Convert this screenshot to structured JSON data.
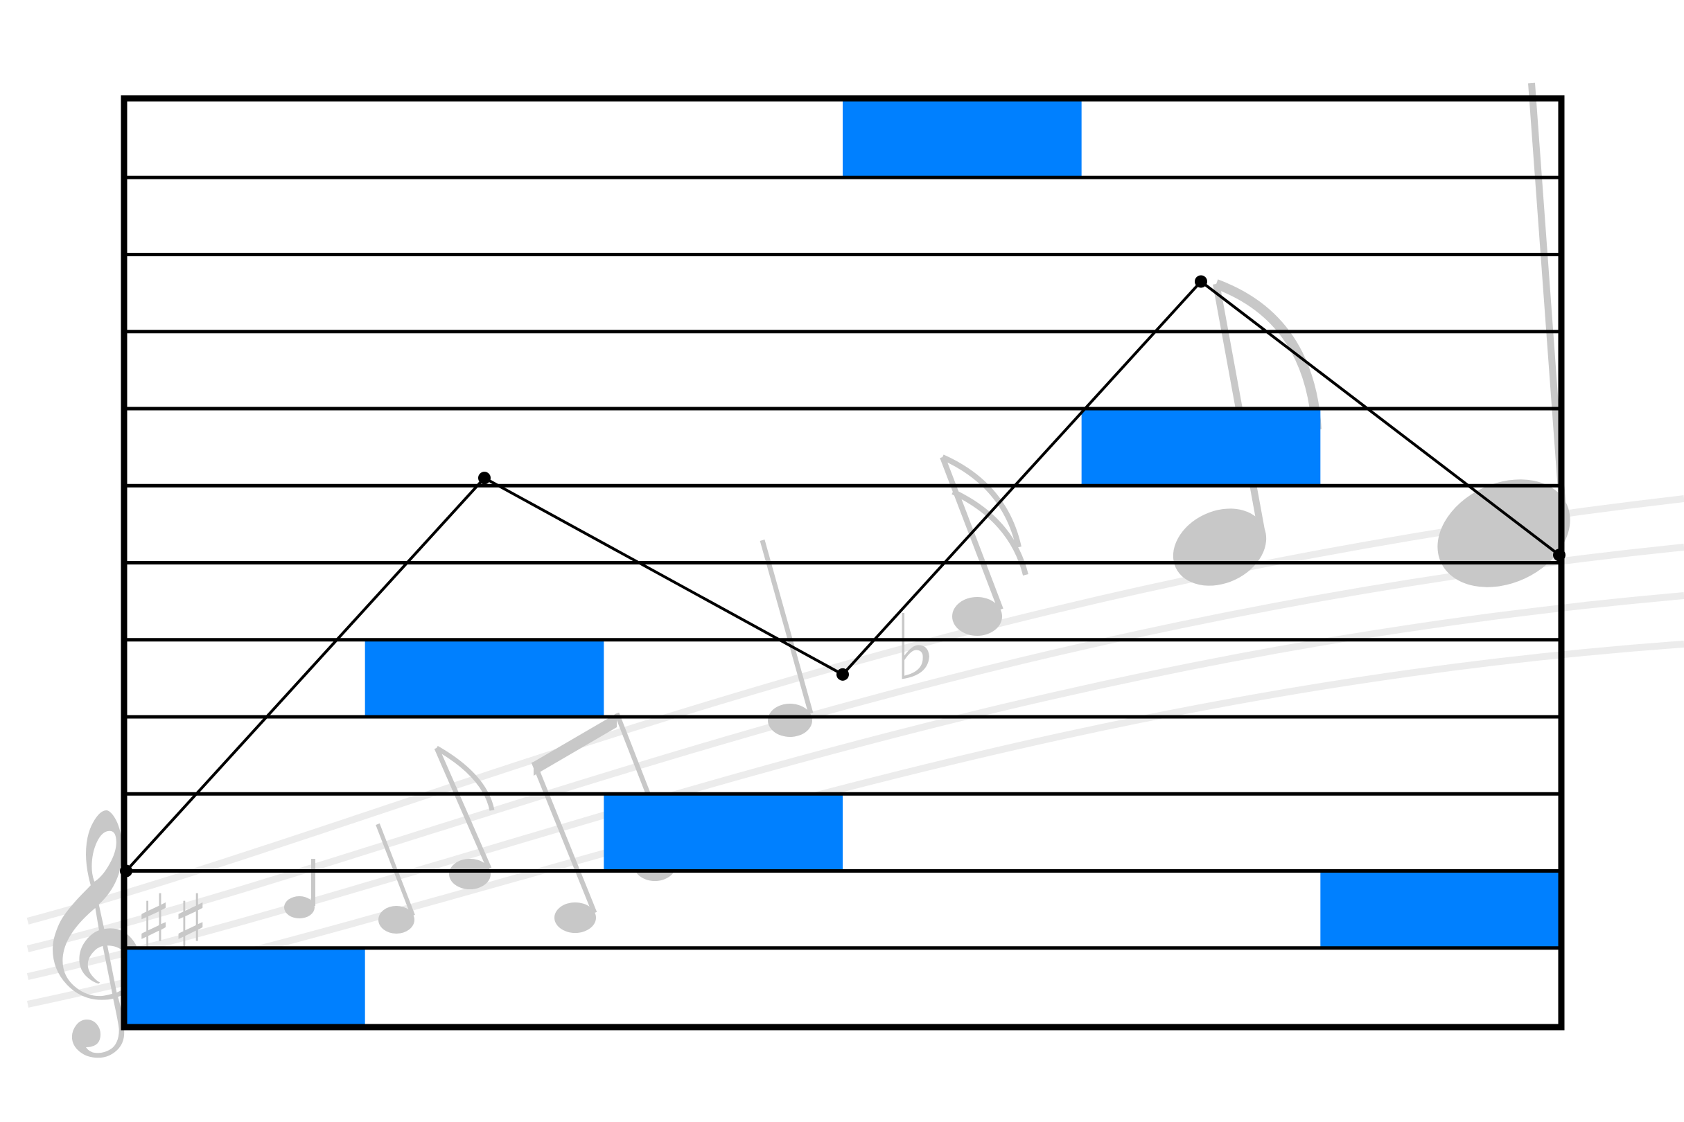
{
  "diagram": {
    "rows": 12,
    "columns": 6,
    "note_blocks": [
      {
        "column": 0,
        "row": 11
      },
      {
        "column": 1,
        "row": 7
      },
      {
        "column": 2,
        "row": 9
      },
      {
        "column": 3,
        "row": 0
      },
      {
        "column": 4,
        "row": 4
      },
      {
        "column": 5,
        "row": 10
      }
    ],
    "contour_points": [
      {
        "x": 0,
        "y": 10.0
      },
      {
        "x": 1.5,
        "y": 4.9
      },
      {
        "x": 3.0,
        "y": 7.45
      },
      {
        "x": 4.5,
        "y": 2.35
      },
      {
        "x": 6.0,
        "y": 5.9
      }
    ]
  },
  "colors": {
    "note_block": "#0080FF",
    "grid_line": "#000000",
    "frame": "#000000",
    "contour": "#000000",
    "watermark": "#c8c8c8"
  },
  "watermark": {
    "icon": "music-notes-watermark-icon",
    "symbols": [
      "treble-clef",
      "sharp",
      "sharp",
      "eighth-note",
      "quarter-note",
      "beamed-notes",
      "flat",
      "sixteenth-note",
      "eighth-note",
      "half-note"
    ]
  }
}
